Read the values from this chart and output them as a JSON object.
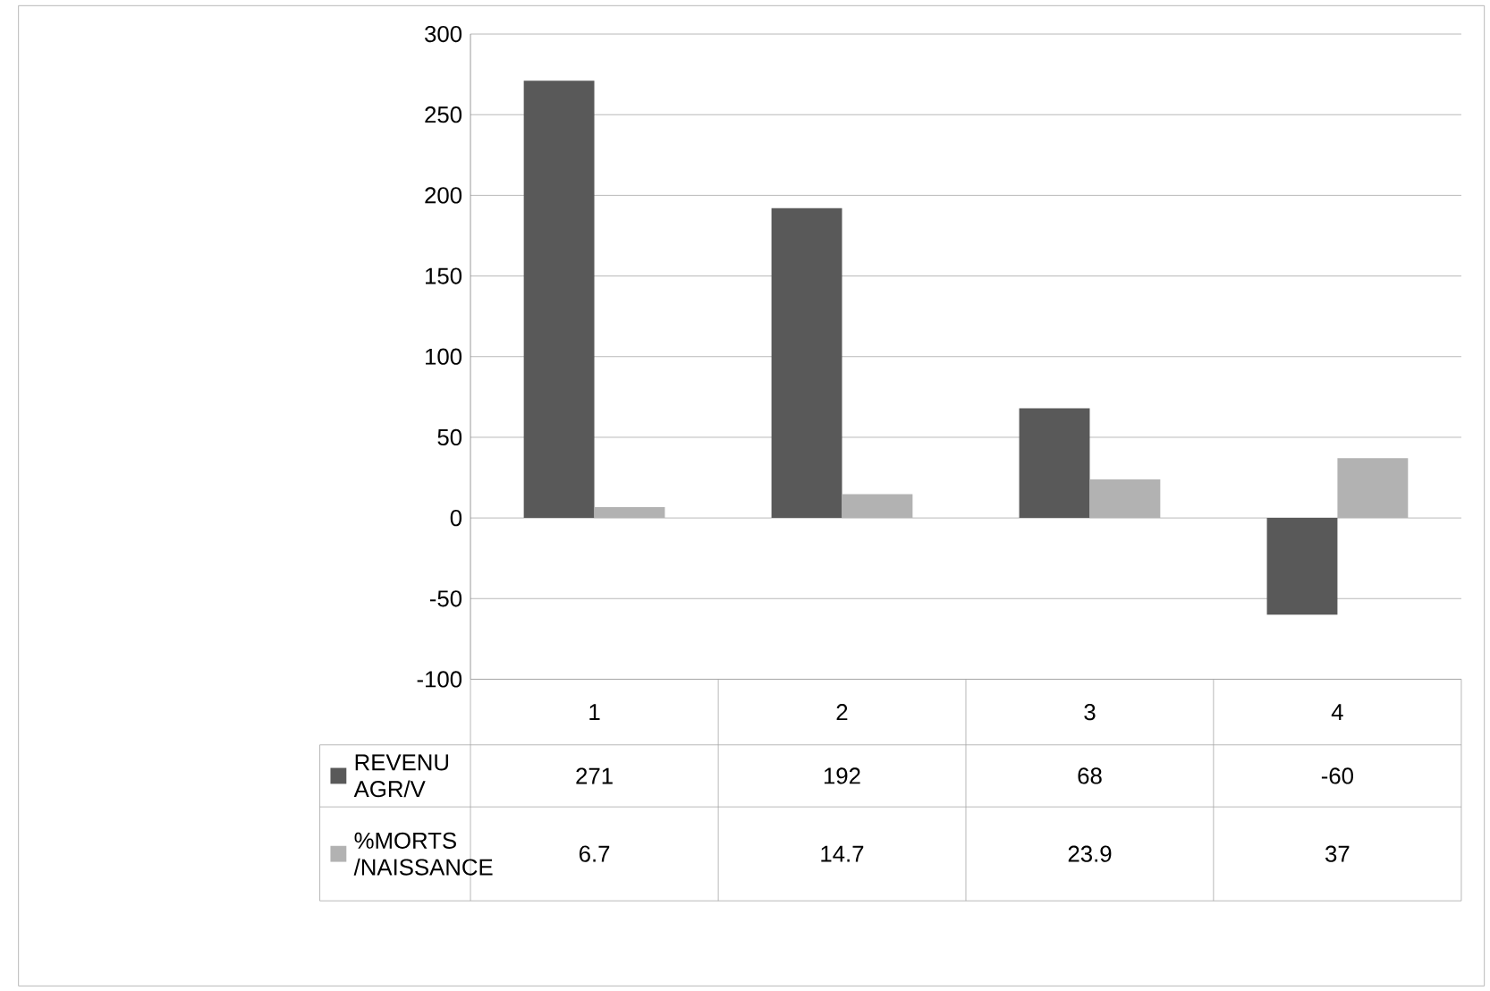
{
  "chart_data": {
    "type": "bar",
    "categories": [
      "1",
      "2",
      "3",
      "4"
    ],
    "series": [
      {
        "name": "REVENU AGR/V",
        "color": "#595959",
        "values": [
          271,
          192,
          68,
          -60
        ]
      },
      {
        "name": "%MORTS /NAISSANCE",
        "color": "#b2b2b2",
        "values": [
          6.7,
          14.7,
          23.9,
          37
        ]
      }
    ],
    "ylim": [
      -100,
      300
    ],
    "yticks": [
      -100,
      -50,
      0,
      50,
      100,
      150,
      200,
      250,
      300
    ],
    "grid": "y",
    "data_labels": true,
    "legend": "bottom left"
  }
}
